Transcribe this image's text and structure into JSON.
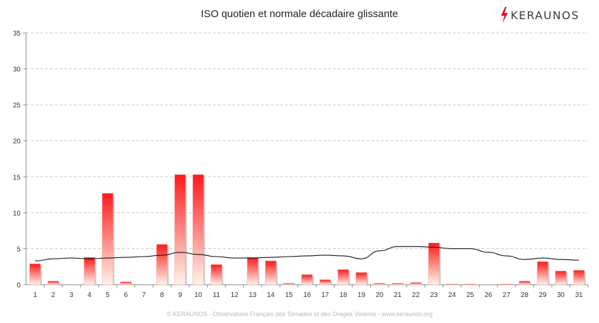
{
  "chart_data": {
    "type": "bar",
    "title": "ISO quotien et normale décadaire glissante",
    "xlabel": "",
    "ylabel": "",
    "ylim": [
      0,
      35
    ],
    "yticks": [
      0,
      5,
      10,
      15,
      20,
      25,
      30,
      35
    ],
    "grid": true,
    "legend": "none",
    "categories": [
      "1",
      "2",
      "3",
      "4",
      "5",
      "6",
      "7",
      "8",
      "9",
      "10",
      "11",
      "12",
      "13",
      "14",
      "15",
      "16",
      "17",
      "18",
      "19",
      "20",
      "21",
      "22",
      "23",
      "24",
      "25",
      "26",
      "27",
      "28",
      "29",
      "30",
      "31"
    ],
    "series": [
      {
        "type": "bar",
        "color": "#ff2020",
        "values": [
          2.9,
          0.5,
          0,
          3.8,
          12.7,
          0.4,
          0,
          5.6,
          15.3,
          15.3,
          2.8,
          0,
          3.8,
          3.3,
          0.2,
          1.4,
          0.7,
          2.1,
          1.7,
          0.2,
          0.2,
          0.3,
          5.8,
          0.1,
          0.1,
          0,
          0.1,
          0.5,
          3.2,
          1.9,
          2.0
        ]
      },
      {
        "type": "line",
        "color": "#111111",
        "values": [
          3.3,
          3.6,
          3.7,
          3.6,
          3.7,
          3.8,
          3.9,
          4.1,
          4.5,
          4.2,
          3.9,
          3.7,
          3.7,
          3.8,
          3.9,
          4.0,
          4.1,
          4.0,
          3.6,
          4.7,
          5.3,
          5.3,
          5.2,
          5.0,
          5.0,
          4.5,
          4.0,
          3.5,
          3.7,
          3.5,
          3.4
        ]
      }
    ]
  },
  "branding": {
    "logo_text": "KERAUNOS",
    "logo_color": "#e0101a"
  },
  "footer": {
    "credit": "© KERAUNOS - Observatoire Français des Tornades et des Orages Violents - www.keraunos.org"
  }
}
